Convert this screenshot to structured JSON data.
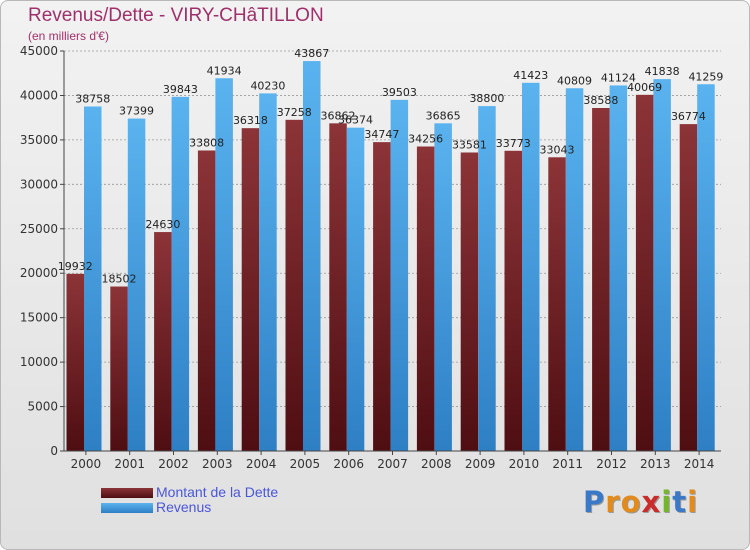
{
  "chart_data": {
    "type": "bar",
    "title": "Revenus/Dette - VIRY-CHâTILLON",
    "subtitle": "(en milliers d'€)",
    "categories": [
      "2000",
      "2001",
      "2002",
      "2003",
      "2004",
      "2005",
      "2006",
      "2007",
      "2008",
      "2009",
      "2010",
      "2011",
      "2012",
      "2013",
      "2014"
    ],
    "series": [
      {
        "name": "Montant de la Dette",
        "color": "#7a2a2c",
        "labels": [
          "19932",
          "18502",
          "24630",
          "33808",
          "36318",
          "37258",
          "36862",
          "34747",
          "34256",
          "33581",
          "33773",
          "33043",
          "38588",
          "40069",
          "36774"
        ],
        "values": [
          19932,
          18502,
          24630,
          33808,
          36318,
          37258,
          36862,
          34747,
          34256,
          33581,
          33773,
          33043,
          38588,
          40069,
          36774
        ]
      },
      {
        "name": "Revenus",
        "color": "#4fa6e6",
        "labels": [
          "38758",
          "37399",
          "39843",
          "41934",
          "40230",
          "43867",
          "36374",
          "39503",
          "36865",
          "38800",
          "41423",
          "40809",
          "41124",
          "41838",
          "41259"
        ],
        "values": [
          38758,
          37399,
          39843,
          41934,
          40230,
          43867,
          36374,
          39503,
          36865,
          38800,
          41423,
          40809,
          41124,
          41838,
          41259
        ]
      }
    ],
    "yticks": [
      0,
      5000,
      10000,
      15000,
      20000,
      25000,
      30000,
      35000,
      40000,
      45000
    ],
    "ylim": [
      0,
      45000
    ],
    "grid": true,
    "legend_position": "bottom-left"
  },
  "legend": {
    "items": [
      {
        "label": "Montant de la Dette",
        "color": "#7a2a2c"
      },
      {
        "label": "Revenus",
        "color": "#4fa6e6"
      }
    ]
  },
  "logo": {
    "letters": [
      "P",
      "r",
      "o",
      "x",
      "i",
      "t",
      "i"
    ],
    "colors": [
      "#3a78c8",
      "#e28a1c",
      "#e28a1c",
      "#cc2b2b",
      "#74b52c",
      "#3a78c8",
      "#e28a1c"
    ]
  }
}
